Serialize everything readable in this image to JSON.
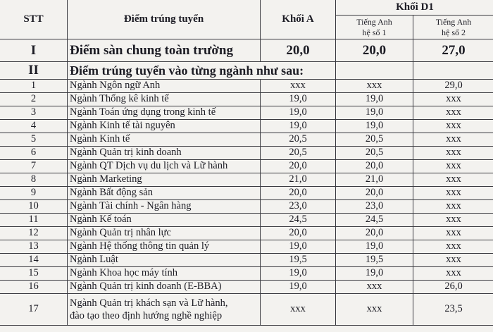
{
  "header": {
    "stt": "STT",
    "diem": "Điểm trúng tuyển",
    "khoi_a": "Khối A",
    "khoi_d1": "Khối D1",
    "d1_sub1_line1": "Tiếng Anh",
    "d1_sub1_line2": "hệ số 1",
    "d1_sub2_line1": "Tiếng Anh",
    "d1_sub2_line2": "hệ số 2"
  },
  "section_I": {
    "stt": "I",
    "label": "Điểm sàn chung toàn trường",
    "a": "20,0",
    "d1_1": "20,0",
    "d1_2": "27,0"
  },
  "section_II": {
    "stt": "II",
    "label": "Điểm trúng tuyển vào từng ngành như sau:"
  },
  "rows": [
    {
      "stt": "1",
      "name": "Ngành Ngôn ngữ Anh",
      "a": "xxx",
      "d1_1": "xxx",
      "d1_2": "29,0"
    },
    {
      "stt": "2",
      "name": "Ngành Thống kê kinh tế",
      "a": "19,0",
      "d1_1": "19,0",
      "d1_2": "xxx"
    },
    {
      "stt": "3",
      "name": "Ngành Toán ứng dụng trong kinh tế",
      "a": "19,0",
      "d1_1": "19,0",
      "d1_2": "xxx"
    },
    {
      "stt": "4",
      "name": "Ngành Kinh tế tài nguyên",
      "a": "19,0",
      "d1_1": "19,0",
      "d1_2": "xxx"
    },
    {
      "stt": "5",
      "name": "Ngành Kinh tế",
      "a": "20,5",
      "d1_1": "20,5",
      "d1_2": "xxx"
    },
    {
      "stt": "6",
      "name": "Ngành Quản trị kinh doanh",
      "a": "20,5",
      "d1_1": "20,5",
      "d1_2": "xxx"
    },
    {
      "stt": "7",
      "name": "Ngành QT Dịch vụ du lịch và Lữ hành",
      "a": "20,0",
      "d1_1": "20,0",
      "d1_2": "xxx"
    },
    {
      "stt": "8",
      "name": "Ngành Marketing",
      "a": "21,0",
      "d1_1": "21,0",
      "d1_2": "xxx"
    },
    {
      "stt": "9",
      "name": "Ngành Bất động sản",
      "a": "20,0",
      "d1_1": "20,0",
      "d1_2": "xxx"
    },
    {
      "stt": "10",
      "name": "Ngành Tài chính - Ngân hàng",
      "a": "23,0",
      "d1_1": "23,0",
      "d1_2": "xxx"
    },
    {
      "stt": "11",
      "name": "Ngành Kế toán",
      "a": "24,5",
      "d1_1": "24,5",
      "d1_2": "xxx"
    },
    {
      "stt": "12",
      "name": "Ngành Quản trị nhân lực",
      "a": "20,0",
      "d1_1": "20,0",
      "d1_2": "xxx"
    },
    {
      "stt": "13",
      "name": "Ngành Hệ thống thông tin quản lý",
      "a": "19,0",
      "d1_1": "19,0",
      "d1_2": "xxx"
    },
    {
      "stt": "14",
      "name": "Ngành Luật",
      "a": "19,5",
      "d1_1": "19,5",
      "d1_2": "xxx"
    },
    {
      "stt": "15",
      "name": "Ngành Khoa học máy tính",
      "a": "19,0",
      "d1_1": "19,0",
      "d1_2": "xxx"
    },
    {
      "stt": "16",
      "name": "Ngành Quản trị kinh doanh (E-BBA)",
      "a": "19,0",
      "d1_1": "xxx",
      "d1_2": "26,0"
    }
  ],
  "row17": {
    "stt": "17",
    "name_line1": "Ngành Quản trị khách sạn và Lữ hành,",
    "name_line2": "đào tạo theo định hướng nghề nghiệp",
    "a": "xxx",
    "d1_1": "xxx",
    "d1_2": "23,5"
  }
}
